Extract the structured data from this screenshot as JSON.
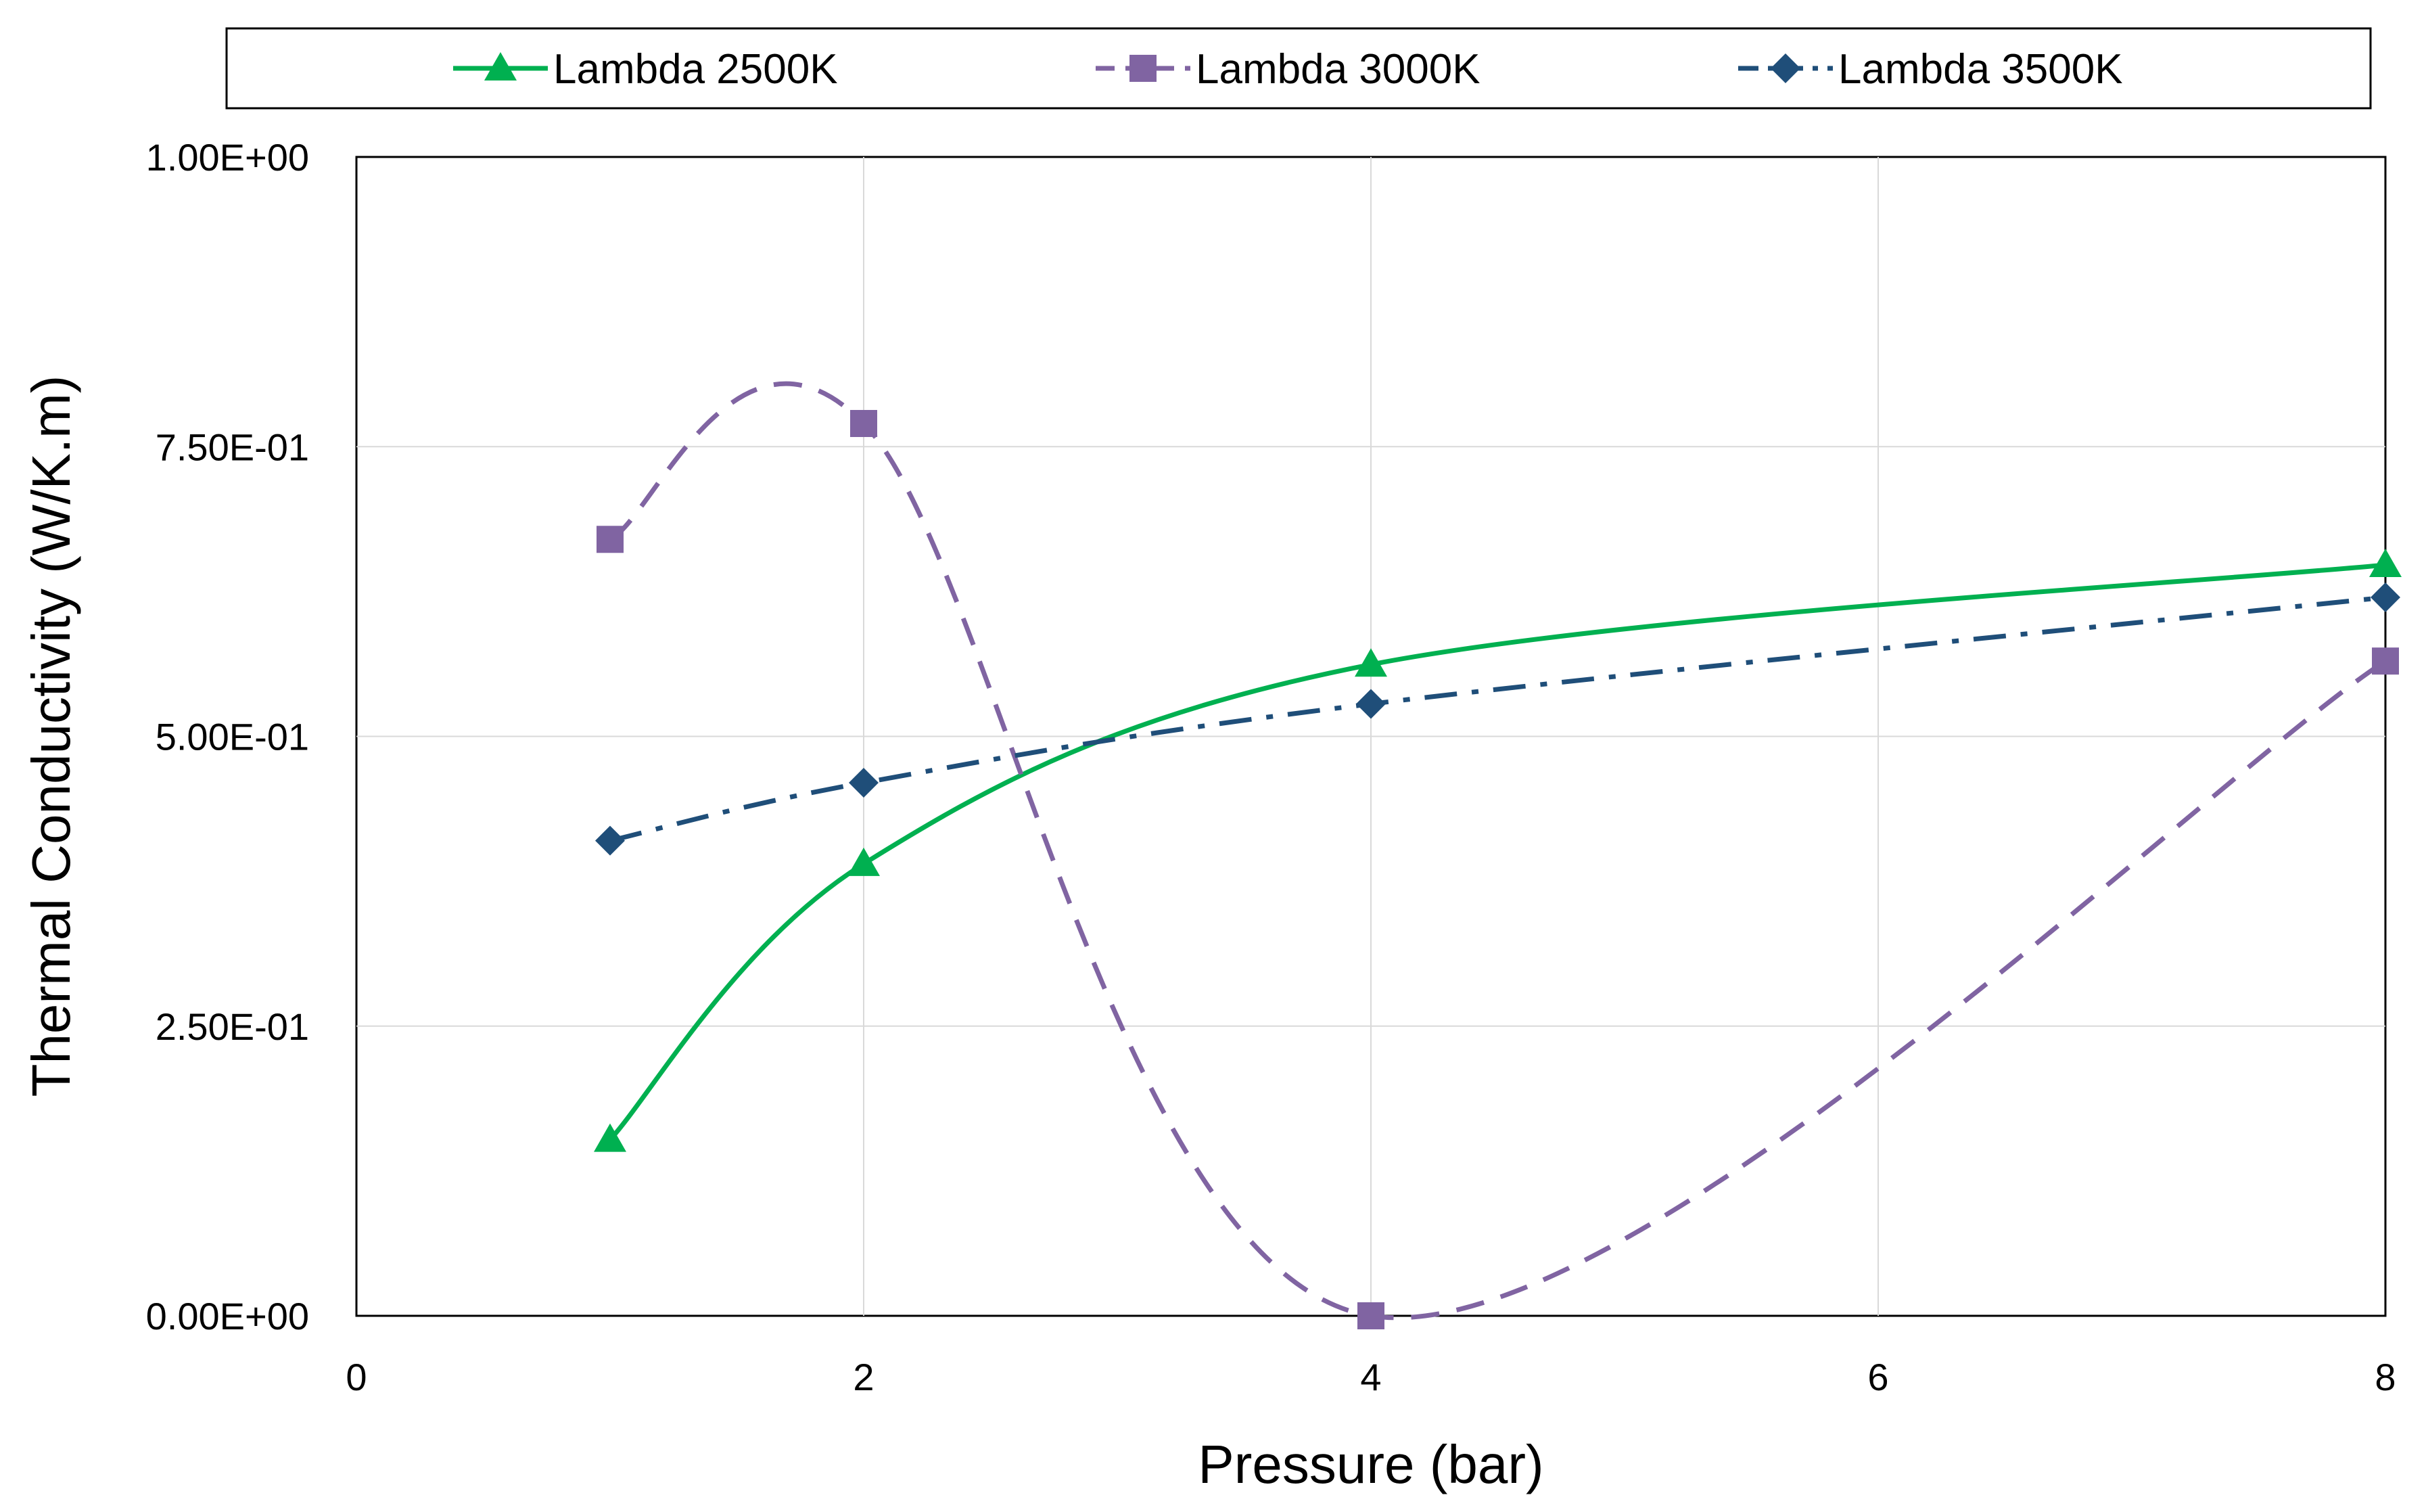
{
  "chart_data": {
    "type": "line",
    "title": "",
    "xlabel": "Pressure (bar)",
    "ylabel": "Thermal Conductivity (W/K.m)",
    "xlim": [
      0,
      8
    ],
    "ylim": [
      0,
      1
    ],
    "x_ticks": [
      0,
      2,
      4,
      6,
      8
    ],
    "x_tick_labels": [
      "0",
      "2",
      "4",
      "6",
      "8"
    ],
    "y_ticks": [
      0,
      0.25,
      0.5,
      0.75,
      1.0
    ],
    "y_tick_labels": [
      "0.00E+00",
      "2.50E-01",
      "5.00E-01",
      "7.50E-01",
      "1.00E+00"
    ],
    "grid": true,
    "legend_position": "top",
    "smooth": true,
    "series": [
      {
        "name": "Lambda 2500K",
        "x": [
          1,
          2,
          4,
          8
        ],
        "values": [
          0.152,
          0.39,
          0.562,
          0.648
        ],
        "color": "#00b050",
        "marker": "triangle",
        "line_style": "solid"
      },
      {
        "name": "Lambda 3000K",
        "x": [
          1,
          2,
          4,
          8
        ],
        "values": [
          0.67,
          0.77,
          0.0,
          0.565
        ],
        "color": "#8064a2",
        "marker": "square",
        "line_style": "dashed"
      },
      {
        "name": "Lambda 3500K",
        "x": [
          1,
          2,
          4,
          8
        ],
        "values": [
          0.41,
          0.46,
          0.528,
          0.62
        ],
        "color": "#1f4e79",
        "marker": "diamond",
        "line_style": "dashdot"
      }
    ]
  }
}
